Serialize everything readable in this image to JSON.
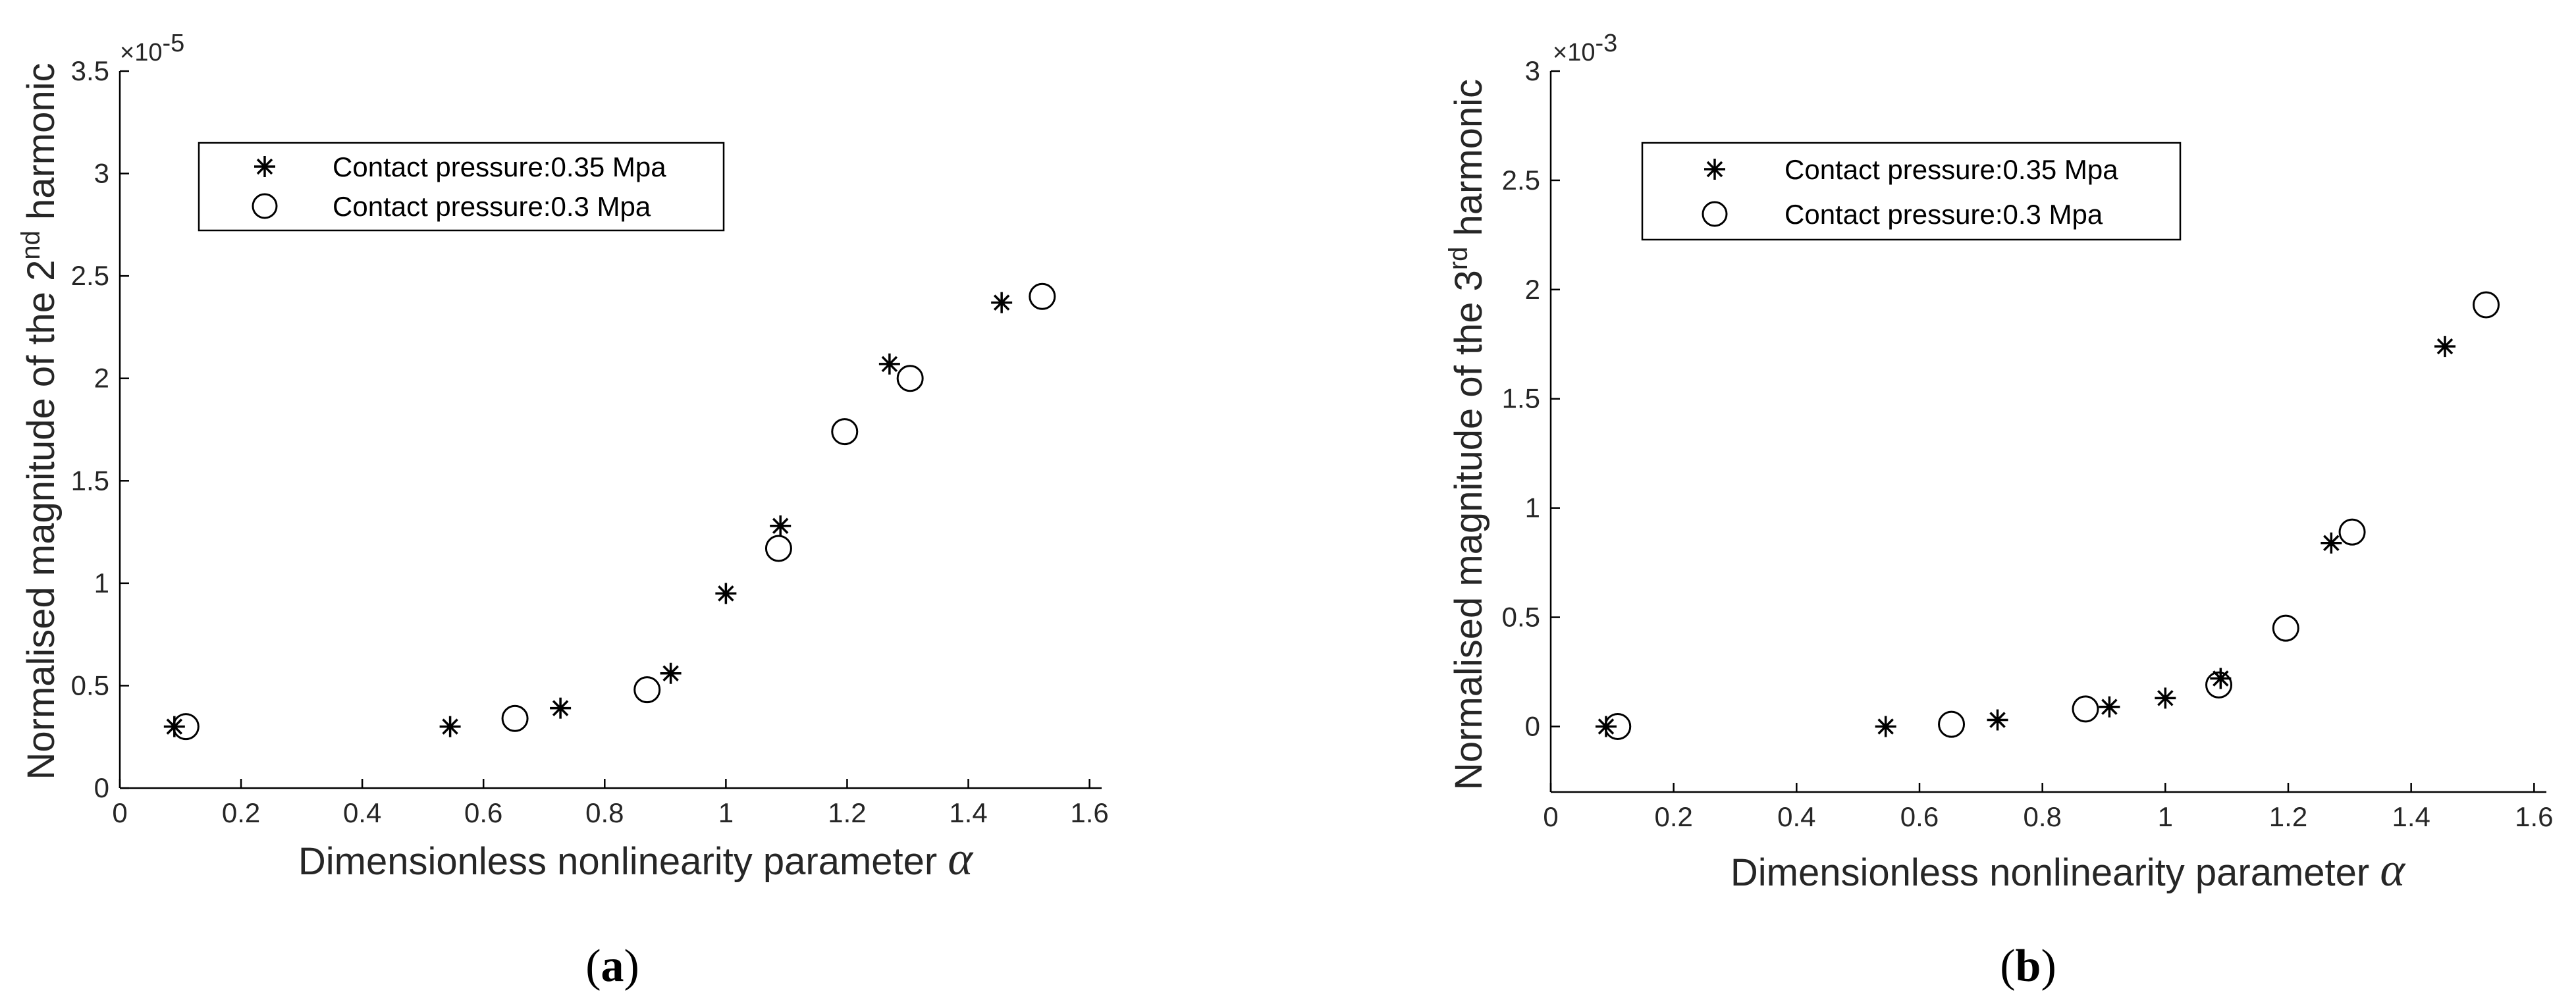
{
  "panels": [
    {
      "label_open": "(",
      "label_letter": "a",
      "label_close": ")",
      "ylabel": "Normalised magnitude of the 2",
      "ylabel_sup": "nd",
      "ylabel_end": " harmonic",
      "xlabel": "Dimensionless nonlinearity parameter ",
      "xlabel_symbol": "α",
      "exponent_base": "×10",
      "exponent_power": "-5",
      "xticks": [
        "0",
        "0.2",
        "0.4",
        "0.6",
        "0.8",
        "1",
        "1.2",
        "1.4",
        "1.6"
      ],
      "yticks": [
        "0",
        "0.5",
        "1",
        "1.5",
        "2",
        "2.5",
        "3",
        "3.5"
      ],
      "legend": [
        "Contact pressure:0.35 Mpa",
        "Contact pressure:0.3 Mpa"
      ]
    },
    {
      "label_open": "(",
      "label_letter": "b",
      "label_close": ")",
      "ylabel": "Normalised magnitude of the 3",
      "ylabel_sup": "rd",
      "ylabel_end": " harmonic",
      "xlabel": "Dimensionless nonlinearity parameter ",
      "xlabel_symbol": "α",
      "exponent_base": "×10",
      "exponent_power": "-3",
      "xticks": [
        "0",
        "0.2",
        "0.4",
        "0.6",
        "0.8",
        "1",
        "1.2",
        "1.4",
        "1.6"
      ],
      "yticks": [
        "0",
        "0.5",
        "1",
        "1.5",
        "2",
        "2.5",
        "3"
      ],
      "legend": [
        "Contact pressure:0.35 Mpa",
        "Contact pressure:0.3 Mpa"
      ]
    }
  ],
  "chart_data": [
    {
      "type": "scatter",
      "xlabel": "Dimensionless nonlinearity parameter α",
      "ylabel": "Normalised magnitude of the 2nd harmonic",
      "y_multiplier": "×10^-5",
      "xlim": [
        0,
        1.62
      ],
      "ylim": [
        0,
        3.5
      ],
      "grid": false,
      "legend_position": "top-left",
      "series": [
        {
          "name": "Contact pressure:0.35 Mpa",
          "marker": "star",
          "x": [
            0.09,
            0.545,
            0.727,
            0.909,
            1.0,
            1.09,
            1.27,
            1.455
          ],
          "y": [
            0.3,
            0.3,
            0.39,
            0.56,
            0.95,
            1.28,
            2.07,
            2.37
          ]
        },
        {
          "name": "Contact pressure:0.3 Mpa",
          "marker": "circle",
          "x": [
            0.109,
            0.652,
            0.87,
            1.087,
            1.196,
            1.304,
            1.522
          ],
          "y": [
            0.3,
            0.34,
            0.48,
            1.17,
            1.74,
            2.0,
            2.4
          ]
        }
      ]
    },
    {
      "type": "scatter",
      "xlabel": "Dimensionless nonlinearity parameter α",
      "ylabel": "Normalised magnitude of the 3rd harmonic",
      "y_multiplier": "×10^-3",
      "xlim": [
        0,
        1.62
      ],
      "ylim": [
        -0.3,
        3
      ],
      "grid": false,
      "legend_position": "top-left",
      "series": [
        {
          "name": "Contact pressure:0.35 Mpa",
          "marker": "star",
          "x": [
            0.09,
            0.545,
            0.727,
            0.909,
            1.0,
            1.09,
            1.27,
            1.455
          ],
          "y": [
            0.0,
            0.0,
            0.03,
            0.09,
            0.13,
            0.22,
            0.84,
            1.74
          ]
        },
        {
          "name": "Contact pressure:0.3 Mpa",
          "marker": "circle",
          "x": [
            0.109,
            0.652,
            0.87,
            1.087,
            1.196,
            1.304,
            1.522
          ],
          "y": [
            0.0,
            0.01,
            0.08,
            0.19,
            0.45,
            0.89,
            1.93
          ]
        }
      ]
    }
  ]
}
